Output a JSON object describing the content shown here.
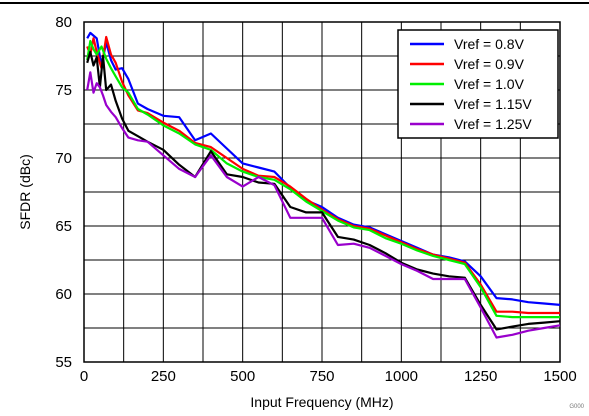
{
  "chart_data": {
    "type": "line",
    "xlabel": "Input Frequency (MHz)",
    "ylabel": "SFDR (dBc)",
    "xlim": [
      0,
      1500
    ],
    "ylim": [
      55,
      80
    ],
    "xticks": [
      0,
      250,
      500,
      750,
      1000,
      1250,
      1500
    ],
    "yticks": [
      55,
      60,
      65,
      70,
      75,
      80
    ],
    "grid": true,
    "legend_position": "top-right",
    "figure_code": "G000",
    "series": [
      {
        "name": "Vref = 0.8V",
        "color": "#0000ff",
        "x": [
          10,
          20,
          30,
          40,
          55,
          70,
          85,
          100,
          120,
          140,
          170,
          200,
          250,
          300,
          350,
          400,
          450,
          500,
          550,
          600,
          650,
          700,
          750,
          800,
          850,
          900,
          950,
          1000,
          1050,
          1100,
          1150,
          1200,
          1250,
          1300,
          1350,
          1400,
          1450,
          1500
        ],
        "y": [
          78.8,
          79.2,
          79.0,
          78.8,
          76.8,
          78.5,
          77.2,
          76.5,
          76.6,
          75.8,
          74.0,
          73.6,
          73.1,
          73.0,
          71.3,
          71.8,
          70.7,
          69.6,
          69.3,
          69.0,
          67.8,
          66.9,
          66.4,
          65.6,
          65.1,
          64.9,
          64.4,
          63.9,
          63.4,
          62.9,
          62.7,
          62.4,
          61.3,
          59.7,
          59.6,
          59.4,
          59.3,
          59.2
        ]
      },
      {
        "name": "Vref = 0.9V",
        "color": "#ff0000",
        "x": [
          10,
          20,
          30,
          40,
          55,
          70,
          85,
          100,
          120,
          140,
          170,
          200,
          250,
          300,
          350,
          400,
          450,
          500,
          550,
          600,
          650,
          700,
          750,
          800,
          850,
          900,
          950,
          1000,
          1050,
          1100,
          1150,
          1200,
          1250,
          1300,
          1350,
          1400,
          1450,
          1500
        ],
        "y": [
          78.2,
          77.6,
          78.8,
          77.8,
          76.6,
          78.9,
          77.6,
          77.0,
          75.6,
          74.6,
          73.5,
          73.3,
          72.6,
          72.0,
          71.1,
          70.8,
          70.0,
          69.2,
          68.7,
          68.6,
          67.9,
          67.0,
          66.2,
          65.5,
          65.0,
          64.8,
          64.3,
          63.8,
          63.3,
          62.9,
          62.6,
          62.3,
          60.7,
          58.7,
          58.7,
          58.6,
          58.6,
          58.6
        ]
      },
      {
        "name": "Vref = 1.0V",
        "color": "#00ee00",
        "x": [
          10,
          20,
          30,
          40,
          55,
          70,
          85,
          100,
          120,
          140,
          170,
          200,
          250,
          300,
          350,
          400,
          450,
          500,
          550,
          600,
          650,
          700,
          750,
          800,
          850,
          900,
          950,
          1000,
          1050,
          1100,
          1150,
          1200,
          1250,
          1300,
          1350,
          1400,
          1450,
          1500
        ],
        "y": [
          77.2,
          78.6,
          78.0,
          77.6,
          78.2,
          77.3,
          76.6,
          76.0,
          75.2,
          74.8,
          73.6,
          73.2,
          72.4,
          71.8,
          71.0,
          70.6,
          69.6,
          69.0,
          68.6,
          68.4,
          67.7,
          66.8,
          66.1,
          65.4,
          64.9,
          64.7,
          64.1,
          63.7,
          63.2,
          62.8,
          62.5,
          62.2,
          60.5,
          58.4,
          58.3,
          58.3,
          58.3,
          58.3
        ]
      },
      {
        "name": "Vref = 1.15V",
        "color": "#000000",
        "x": [
          10,
          20,
          30,
          40,
          50,
          60,
          70,
          85,
          100,
          120,
          140,
          170,
          200,
          250,
          300,
          350,
          400,
          450,
          500,
          550,
          600,
          650,
          700,
          750,
          800,
          850,
          900,
          950,
          1000,
          1050,
          1100,
          1150,
          1200,
          1250,
          1300,
          1350,
          1400,
          1450,
          1500
        ],
        "y": [
          77.0,
          77.8,
          76.8,
          77.4,
          75.2,
          77.5,
          75.0,
          75.4,
          74.2,
          72.9,
          72.0,
          71.6,
          71.2,
          70.6,
          69.5,
          68.6,
          70.5,
          68.8,
          68.6,
          68.2,
          68.1,
          66.4,
          66.0,
          66.0,
          64.2,
          64.0,
          63.6,
          63.0,
          62.3,
          61.8,
          61.5,
          61.3,
          61.2,
          59.2,
          57.4,
          57.6,
          57.8,
          57.9,
          58.0
        ]
      },
      {
        "name": "Vref = 1.25V",
        "color": "#9900cc",
        "x": [
          10,
          20,
          30,
          40,
          50,
          60,
          70,
          85,
          100,
          120,
          140,
          170,
          200,
          250,
          300,
          350,
          400,
          450,
          500,
          550,
          600,
          650,
          700,
          750,
          800,
          850,
          900,
          950,
          1000,
          1050,
          1100,
          1150,
          1200,
          1250,
          1300,
          1350,
          1400,
          1450,
          1500
        ],
        "y": [
          75.0,
          76.3,
          74.8,
          75.5,
          75.2,
          74.6,
          73.9,
          73.4,
          73.0,
          72.2,
          71.5,
          71.3,
          71.2,
          70.2,
          69.2,
          68.6,
          70.2,
          68.6,
          67.9,
          68.6,
          68.0,
          65.6,
          65.6,
          65.6,
          63.6,
          63.7,
          63.4,
          62.8,
          62.2,
          61.7,
          61.1,
          61.1,
          61.1,
          59.0,
          56.8,
          57.0,
          57.3,
          57.5,
          57.7
        ]
      }
    ]
  }
}
